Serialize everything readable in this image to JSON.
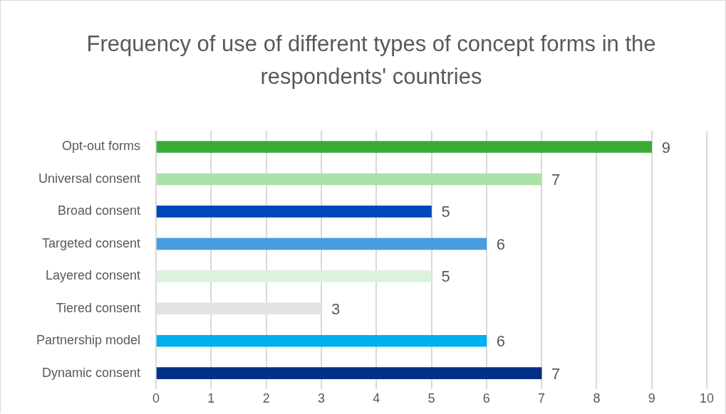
{
  "chart_data": {
    "type": "bar",
    "orientation": "horizontal",
    "title": "Frequency of use of different types of concept forms in the respondents' countries",
    "categories": [
      "Opt-out forms",
      "Universal consent",
      "Broad consent",
      "Targeted consent",
      "Layered consent",
      "Tiered consent",
      "Partnership model",
      "Dynamic consent"
    ],
    "values": [
      9,
      7,
      5,
      6,
      5,
      3,
      6,
      7
    ],
    "colors": [
      "#3aaa35",
      "#a9e2a6",
      "#0047bb",
      "#479ddd",
      "#dcf2dc",
      "#e3e3e3",
      "#00b0ef",
      "#003087"
    ],
    "xlim": [
      0,
      10
    ],
    "xticks": [
      0,
      1,
      2,
      3,
      4,
      5,
      6,
      7,
      8,
      9,
      10
    ],
    "grid": "x",
    "data_labels": true
  }
}
